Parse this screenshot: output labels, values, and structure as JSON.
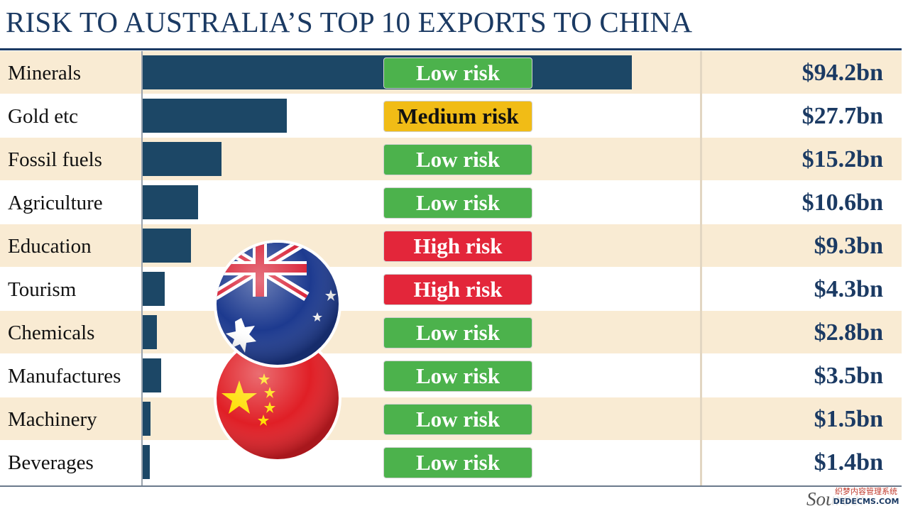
{
  "title": "RISK TO AUSTRALIA’S TOP 10 EXPORTS TO CHINA",
  "source_text": "Source:",
  "watermark": {
    "line1": "织梦内容管理系统",
    "line2": "DEDECMS.COM"
  },
  "colors": {
    "bar": "#1c4766",
    "low_risk": "#4cb24c",
    "medium_risk": "#f1bc16",
    "high_risk": "#e3263a",
    "row_shade": "#f9ebd3",
    "title": "#1b3a63"
  },
  "flags": {
    "top": "australia-flag-icon",
    "bottom": "china-flag-icon"
  },
  "chart_data": {
    "type": "bar",
    "orientation": "horizontal",
    "title": "RISK TO AUSTRALIA’S TOP 10 EXPORTS TO CHINA",
    "unit": "$bn",
    "xlim": [
      0,
      94.2
    ],
    "categories": [
      "Minerals",
      "Gold etc",
      "Fossil fuels",
      "Agriculture",
      "Education",
      "Tourism",
      "Chemicals",
      "Manufactures",
      "Machinery",
      "Beverages"
    ],
    "values": [
      94.2,
      27.7,
      15.2,
      10.6,
      9.3,
      4.3,
      2.8,
      3.5,
      1.5,
      1.4
    ],
    "value_labels": [
      "$94.2bn",
      "$27.7bn",
      "$15.2bn",
      "$10.6bn",
      "$9.3bn",
      "$4.3bn",
      "$2.8bn",
      "$3.5bn",
      "$1.5bn",
      "$1.4bn"
    ],
    "risk_levels": [
      "low",
      "medium",
      "low",
      "low",
      "high",
      "high",
      "low",
      "low",
      "low",
      "low"
    ],
    "risk_labels": [
      "Low risk",
      "Medium risk",
      "Low risk",
      "Low risk",
      "High risk",
      "High risk",
      "Low risk",
      "Low risk",
      "Low risk",
      "Low risk"
    ],
    "shaded_rows": [
      true,
      false,
      true,
      false,
      true,
      false,
      true,
      false,
      true,
      false
    ],
    "grid": false,
    "legend": "none"
  }
}
